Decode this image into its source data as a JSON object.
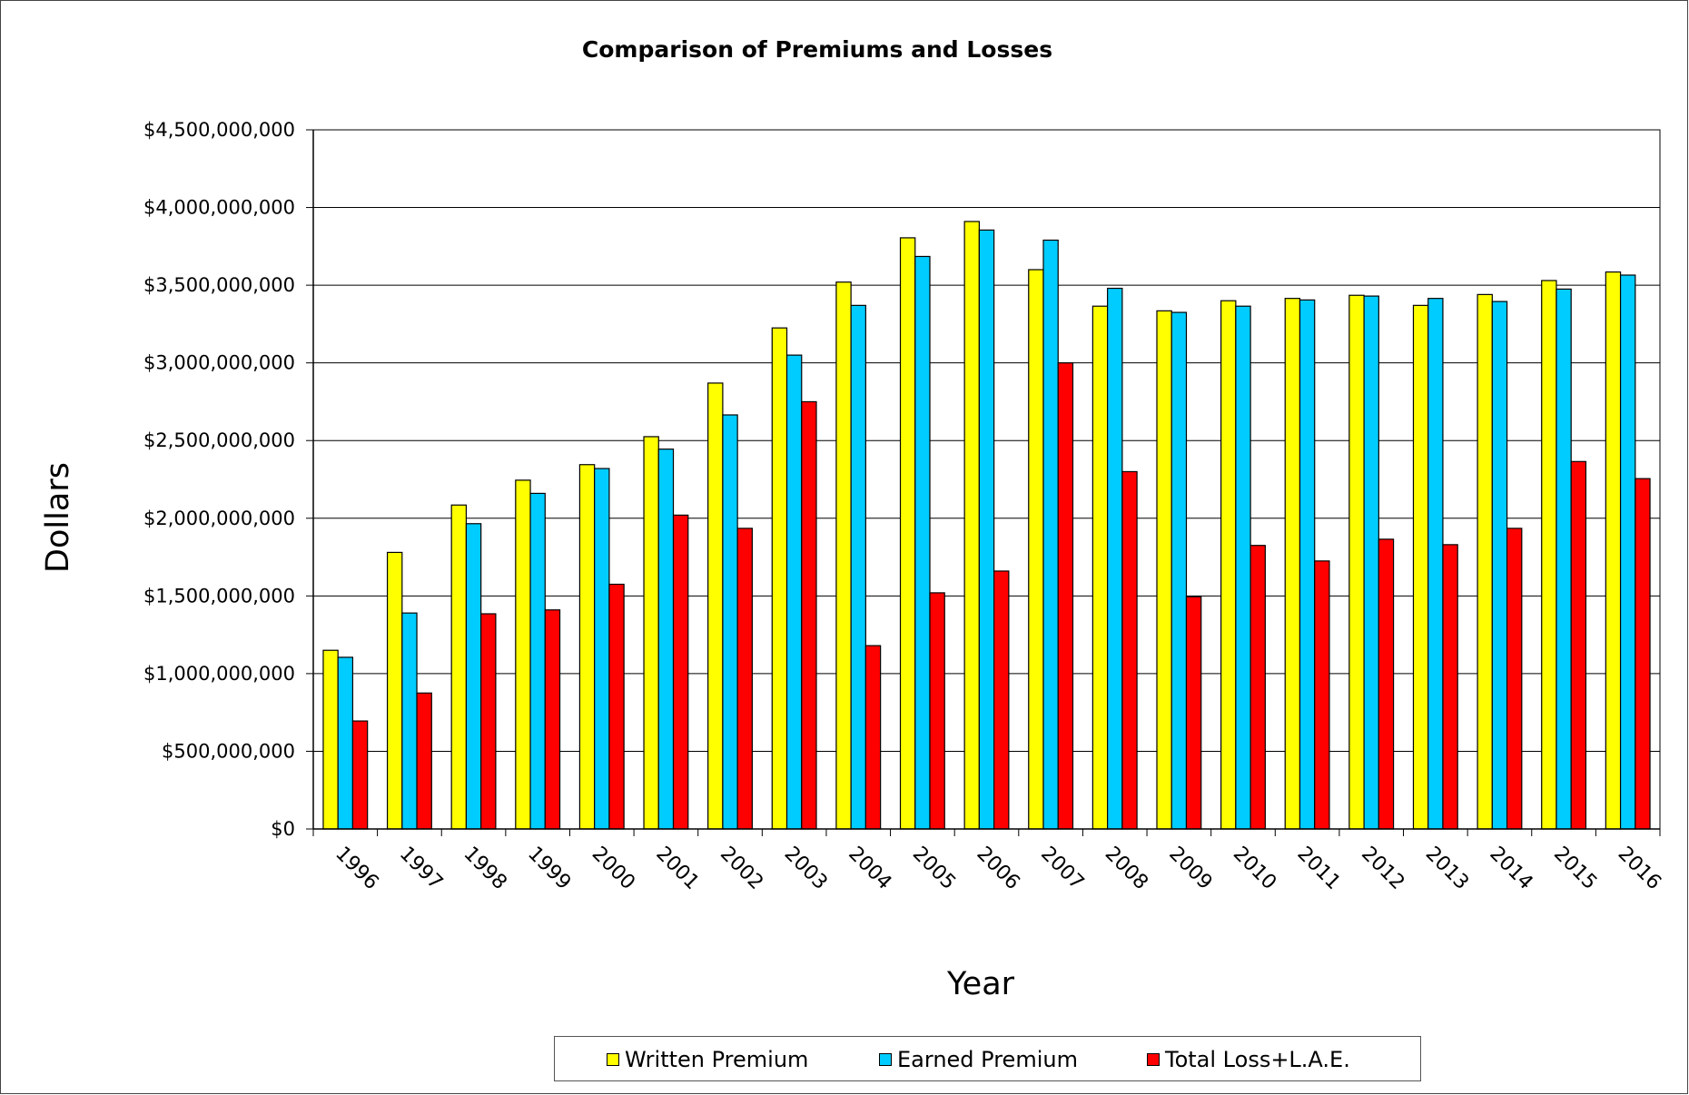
{
  "chart_data": {
    "type": "bar",
    "title": "Comparison of Premiums and Losses",
    "xlabel": "Year",
    "ylabel": "Dollars",
    "ylim": [
      0,
      4500000000
    ],
    "yticks": [
      "$0",
      "$500,000,000",
      "$1,000,000,000",
      "$1,500,000,000",
      "$2,000,000,000",
      "$2,500,000,000",
      "$3,000,000,000",
      "$3,500,000,000",
      "$4,000,000,000",
      "$4,500,000,000"
    ],
    "grid": true,
    "legend_position": "bottom",
    "categories": [
      "1996",
      "1997",
      "1998",
      "1999",
      "2000",
      "2001",
      "2002",
      "2003",
      "2004",
      "2005",
      "2006",
      "2007",
      "2008",
      "2009",
      "2010",
      "2011",
      "2012",
      "2013",
      "2014",
      "2015",
      "2016"
    ],
    "series": [
      {
        "name": "Written Premium",
        "color": "#FFFF00",
        "values": [
          1150000000,
          1780000000,
          2085000000,
          2245000000,
          2345000000,
          2525000000,
          2870000000,
          3225000000,
          3520000000,
          3805000000,
          3910000000,
          3600000000,
          3365000000,
          3335000000,
          3400000000,
          3415000000,
          3435000000,
          3370000000,
          3440000000,
          3530000000,
          3585000000
        ]
      },
      {
        "name": "Earned Premium",
        "color": "#00CCFF",
        "values": [
          1105000000,
          1390000000,
          1965000000,
          2160000000,
          2320000000,
          2445000000,
          2665000000,
          3050000000,
          3370000000,
          3685000000,
          3855000000,
          3790000000,
          3480000000,
          3325000000,
          3365000000,
          3405000000,
          3430000000,
          3415000000,
          3395000000,
          3475000000,
          3565000000
        ]
      },
      {
        "name": "Total Loss+L.A.E.",
        "color": "#FF0000",
        "values": [
          695000000,
          875000000,
          1385000000,
          1410000000,
          1575000000,
          2020000000,
          1935000000,
          2750000000,
          1180000000,
          1520000000,
          1660000000,
          3000000000,
          2300000000,
          1495000000,
          1825000000,
          1725000000,
          1865000000,
          1830000000,
          1935000000,
          2365000000,
          2255000000
        ]
      }
    ]
  }
}
